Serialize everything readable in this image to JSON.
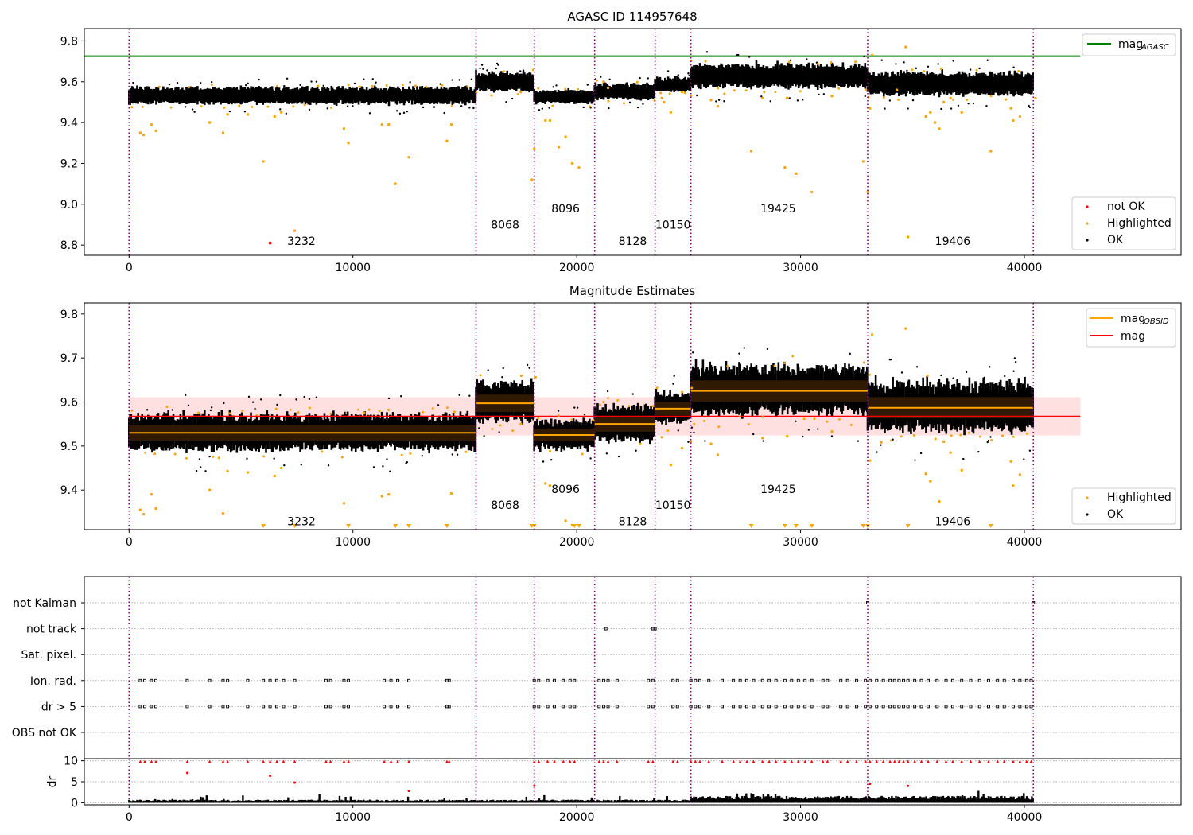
{
  "chart_data": [
    {
      "id": "top",
      "type": "scatter",
      "title": "AGASC ID 114957648",
      "xlim": [
        -2000,
        47000
      ],
      "ylim": [
        8.75,
        9.86
      ],
      "xticks": [
        0,
        10000,
        20000,
        30000,
        40000
      ],
      "yticks": [
        8.8,
        9.0,
        9.2,
        9.4,
        9.6,
        9.8
      ],
      "ytick_labels": [
        "8.8",
        "9.0",
        "9.2",
        "9.4",
        "9.6",
        "9.8"
      ],
      "xtick_labels": [
        "0",
        "10000",
        "20000",
        "30000",
        "40000"
      ],
      "mag_agasc": 9.725,
      "legend_lines": [
        {
          "label_main": "mag",
          "label_sub": "AGASC",
          "color": "#008000"
        }
      ],
      "legend_points": [
        {
          "label": "not OK",
          "color": "#ff0000"
        },
        {
          "label": "Highlighted",
          "color": "#ffa500"
        },
        {
          "label": "OK",
          "color": "#000000"
        }
      ],
      "not_ok_points": [
        [
          6300,
          8.81
        ]
      ],
      "highlighted_points": [
        [
          500,
          9.35
        ],
        [
          650,
          9.34
        ],
        [
          1000,
          9.39
        ],
        [
          1200,
          9.36
        ],
        [
          3600,
          9.4
        ],
        [
          4200,
          9.35
        ],
        [
          4400,
          9.44
        ],
        [
          5300,
          9.44
        ],
        [
          6000,
          9.21
        ],
        [
          6500,
          9.43
        ],
        [
          6800,
          9.45
        ],
        [
          7400,
          8.87
        ],
        [
          9600,
          9.37
        ],
        [
          9800,
          9.3
        ],
        [
          11300,
          9.39
        ],
        [
          11600,
          9.39
        ],
        [
          11900,
          9.1
        ],
        [
          12500,
          9.23
        ],
        [
          14200,
          9.31
        ],
        [
          14400,
          9.39
        ],
        [
          17500,
          9.55
        ],
        [
          18000,
          9.12
        ],
        [
          18100,
          9.27
        ],
        [
          18600,
          9.41
        ],
        [
          18800,
          9.41
        ],
        [
          19200,
          9.28
        ],
        [
          19500,
          9.33
        ],
        [
          19800,
          9.2
        ],
        [
          20100,
          9.18
        ],
        [
          21200,
          9.6
        ],
        [
          21400,
          9.57
        ],
        [
          23800,
          9.52
        ],
        [
          23900,
          9.5
        ],
        [
          24200,
          9.45
        ],
        [
          24700,
          9.55
        ],
        [
          25100,
          9.53
        ],
        [
          26000,
          9.51
        ],
        [
          26300,
          9.48
        ],
        [
          26600,
          9.54
        ],
        [
          27800,
          9.26
        ],
        [
          28300,
          9.52
        ],
        [
          29300,
          9.18
        ],
        [
          29400,
          9.52
        ],
        [
          29800,
          9.15
        ],
        [
          30500,
          9.06
        ],
        [
          31400,
          9.53
        ],
        [
          32800,
          9.21
        ],
        [
          33000,
          9.06
        ],
        [
          33100,
          9.47
        ],
        [
          33200,
          9.73
        ],
        [
          34300,
          9.56
        ],
        [
          34700,
          9.77
        ],
        [
          34800,
          8.84
        ],
        [
          35600,
          9.43
        ],
        [
          35800,
          9.45
        ],
        [
          36000,
          9.4
        ],
        [
          36200,
          9.37
        ],
        [
          36400,
          9.5
        ],
        [
          36700,
          9.52
        ],
        [
          37200,
          9.45
        ],
        [
          38500,
          9.26
        ],
        [
          39400,
          9.47
        ],
        [
          39500,
          9.41
        ],
        [
          39800,
          9.43
        ]
      ],
      "obs_labels": [
        {
          "x": 7700,
          "y": 8.8,
          "text": "3232"
        },
        {
          "x": 16800,
          "y": 8.88,
          "text": "8068"
        },
        {
          "x": 19500,
          "y": 8.96,
          "text": "8096"
        },
        {
          "x": 22500,
          "y": 8.8,
          "text": "8128"
        },
        {
          "x": 24300,
          "y": 8.88,
          "text": "10150"
        },
        {
          "x": 29000,
          "y": 8.96,
          "text": "19425"
        },
        {
          "x": 36800,
          "y": 8.8,
          "text": "19406"
        }
      ]
    },
    {
      "id": "middle",
      "type": "scatter",
      "title": "Magnitude Estimates",
      "xlim": [
        -2000,
        47000
      ],
      "ylim": [
        9.31,
        9.825
      ],
      "xticks": [
        0,
        10000,
        20000,
        30000,
        40000
      ],
      "xtick_labels": [
        "0",
        "10000",
        "20000",
        "30000",
        "40000"
      ],
      "yticks": [
        9.4,
        9.5,
        9.6,
        9.7,
        9.8
      ],
      "ytick_labels": [
        "9.4",
        "9.5",
        "9.6",
        "9.7",
        "9.8"
      ],
      "mag": 9.567,
      "mag_band": [
        9.524,
        9.611
      ],
      "legend_lines": [
        {
          "label_main": "mag",
          "label_sub": "OBSID",
          "color": "#ffa500"
        },
        {
          "label_main": "mag",
          "label_sub": "",
          "color": "#ff0000"
        }
      ],
      "legend_points": [
        {
          "label": "Highlighted",
          "color": "#ffa500"
        },
        {
          "label": "OK",
          "color": "#000000"
        }
      ],
      "highlighted_points": [
        [
          500,
          9.355
        ],
        [
          650,
          9.345
        ],
        [
          1000,
          9.39
        ],
        [
          1200,
          9.358
        ],
        [
          3600,
          9.4
        ],
        [
          4200,
          9.347
        ],
        [
          4400,
          9.443
        ],
        [
          5300,
          9.44
        ],
        [
          6500,
          9.432
        ],
        [
          6800,
          9.45
        ],
        [
          9600,
          9.37
        ],
        [
          10500,
          9.575
        ],
        [
          11300,
          9.386
        ],
        [
          11600,
          9.39
        ],
        [
          14400,
          9.392
        ],
        [
          17500,
          9.55
        ],
        [
          18600,
          9.415
        ],
        [
          18800,
          9.41
        ],
        [
          19500,
          9.33
        ],
        [
          19800,
          9.32
        ],
        [
          21200,
          9.6
        ],
        [
          23800,
          9.52
        ],
        [
          24200,
          9.457
        ],
        [
          24700,
          9.495
        ],
        [
          25100,
          9.51
        ],
        [
          26000,
          9.505
        ],
        [
          26300,
          9.48
        ],
        [
          28300,
          9.518
        ],
        [
          29400,
          9.522
        ],
        [
          31400,
          9.533
        ],
        [
          33100,
          9.467
        ],
        [
          33200,
          9.753
        ],
        [
          34700,
          9.767
        ],
        [
          35600,
          9.437
        ],
        [
          35800,
          9.42
        ],
        [
          36200,
          9.374
        ],
        [
          36400,
          9.51
        ],
        [
          36700,
          9.485
        ],
        [
          37200,
          9.445
        ],
        [
          39400,
          9.465
        ],
        [
          39500,
          9.41
        ],
        [
          39800,
          9.435
        ]
      ],
      "lower_markers": [
        6000,
        7400,
        9800,
        11900,
        12500,
        14200,
        18000,
        18100,
        19900,
        20100,
        27800,
        29300,
        29800,
        30500,
        32800,
        33000,
        34800,
        38500
      ],
      "obs_labels": [
        {
          "x": 7700,
          "y": 9.32,
          "text": "3232"
        },
        {
          "x": 16800,
          "y": 9.357,
          "text": "8068"
        },
        {
          "x": 19500,
          "y": 9.393,
          "text": "8096"
        },
        {
          "x": 22500,
          "y": 9.32,
          "text": "8128"
        },
        {
          "x": 24300,
          "y": 9.357,
          "text": "10150"
        },
        {
          "x": 29000,
          "y": 9.393,
          "text": "19425"
        },
        {
          "x": 36800,
          "y": 9.32,
          "text": "19406"
        }
      ]
    },
    {
      "id": "flags",
      "type": "scatter",
      "xlim": [
        -2000,
        47000
      ],
      "categories": [
        "not Kalman",
        "not track",
        "Sat. pixel.",
        "Ion. rad.",
        "dr > 5",
        "OBS not OK"
      ],
      "not_track_x": [
        21300,
        23400,
        23500
      ],
      "not_kalman_x": [
        33000,
        40400
      ],
      "ion_rad_x": [
        500,
        700,
        1000,
        1200,
        2600,
        3600,
        4200,
        4400,
        5300,
        6000,
        6300,
        6600,
        6900,
        7400,
        8800,
        9000,
        9600,
        9800,
        11400,
        11700,
        12000,
        12500,
        14200,
        14300,
        18100,
        18300,
        18700,
        19000,
        19400,
        19700,
        19900,
        21000,
        21200,
        21400,
        21800,
        23200,
        23400,
        24300,
        24500,
        25100,
        25300,
        25500,
        25900,
        26500,
        27000,
        27300,
        27600,
        27900,
        28300,
        28600,
        28900,
        29300,
        29600,
        29900,
        30200,
        30500,
        31000,
        31200,
        31800,
        32100,
        32500,
        32900,
        33100,
        33400,
        33700,
        34000,
        34200,
        34400,
        34600,
        34800,
        35100,
        35400,
        35700,
        36100,
        36500,
        36800,
        37200,
        37600,
        38000,
        38400,
        38800,
        39100,
        39500,
        39800,
        40100,
        40300
      ],
      "dr5_x": [
        500,
        700,
        1000,
        1200,
        2600,
        3600,
        4200,
        4400,
        5300,
        6000,
        6300,
        6600,
        6900,
        7400,
        8800,
        9000,
        9600,
        9800,
        11400,
        11700,
        12000,
        12500,
        14200,
        14300,
        18100,
        18300,
        18700,
        19000,
        19400,
        19700,
        19900,
        21000,
        21200,
        21400,
        21800,
        23200,
        23400,
        24300,
        24500,
        25100,
        25300,
        25500,
        25900,
        26500,
        27000,
        27300,
        27600,
        27900,
        28300,
        28600,
        28900,
        29300,
        29600,
        29900,
        30200,
        30500,
        31000,
        31200,
        31800,
        32100,
        32500,
        32900,
        33100,
        33400,
        33700,
        34000,
        34200,
        34400,
        34600,
        34800,
        35100,
        35400,
        35700,
        36100,
        36500,
        36800,
        37200,
        37600,
        38000,
        38400,
        38800,
        39100,
        39500,
        39800,
        40100,
        40300
      ]
    },
    {
      "id": "dr",
      "type": "scatter",
      "ylabel": "dr",
      "xlim": [
        -2000,
        47000
      ],
      "ylim": [
        -0.5,
        10.5
      ],
      "yticks": [
        0,
        5,
        10
      ],
      "ytick_labels": [
        "0",
        "5",
        "10"
      ],
      "xticks": [
        0,
        10000,
        20000,
        30000,
        40000
      ],
      "xtick_labels": [
        "0",
        "10000",
        "20000",
        "30000",
        "40000"
      ],
      "clip_x": [
        500,
        700,
        1000,
        1200,
        2600,
        3600,
        4200,
        4400,
        5300,
        6000,
        6300,
        6600,
        6900,
        7400,
        8800,
        9000,
        9600,
        9800,
        11400,
        11700,
        12000,
        12500,
        14200,
        14300,
        18100,
        18300,
        18700,
        19000,
        19400,
        19700,
        19900,
        21000,
        21200,
        21400,
        21800,
        23200,
        23400,
        24300,
        24500,
        25100,
        25300,
        25500,
        25900,
        26500,
        27000,
        27300,
        27600,
        27900,
        28300,
        28600,
        28900,
        29300,
        29600,
        29900,
        30200,
        30500,
        31000,
        31200,
        31800,
        32100,
        32500,
        32900,
        33100,
        33400,
        33700,
        34000,
        34200,
        34400,
        34600,
        34800,
        35100,
        35400,
        35700,
        36100,
        36500,
        36800,
        37200,
        37600,
        38000,
        38400,
        38800,
        39100,
        39500,
        39800,
        40100,
        40300
      ],
      "red_points": [
        [
          2600,
          7.1
        ],
        [
          6300,
          6.4
        ],
        [
          7400,
          4.8
        ],
        [
          12500,
          2.8
        ],
        [
          18100,
          4.0
        ],
        [
          33100,
          4.5
        ],
        [
          34800,
          4.0
        ]
      ]
    }
  ],
  "obsid_boundaries": [
    0,
    15500,
    18100,
    20800,
    23500,
    25100,
    33000,
    40400
  ],
  "obsids": [
    {
      "start": 0,
      "end": 15500,
      "mag": 9.53,
      "spread": 0.016
    },
    {
      "start": 15500,
      "end": 18100,
      "mag": 9.597,
      "spread": 0.018
    },
    {
      "start": 18100,
      "end": 20800,
      "mag": 9.525,
      "spread": 0.013
    },
    {
      "start": 20800,
      "end": 23500,
      "mag": 9.55,
      "spread": 0.016
    },
    {
      "start": 23500,
      "end": 25100,
      "mag": 9.585,
      "spread": 0.014
    },
    {
      "start": 25100,
      "end": 33000,
      "mag": 9.625,
      "spread": 0.022
    },
    {
      "start": 33000,
      "end": 40400,
      "mag": 9.587,
      "spread": 0.022
    }
  ]
}
